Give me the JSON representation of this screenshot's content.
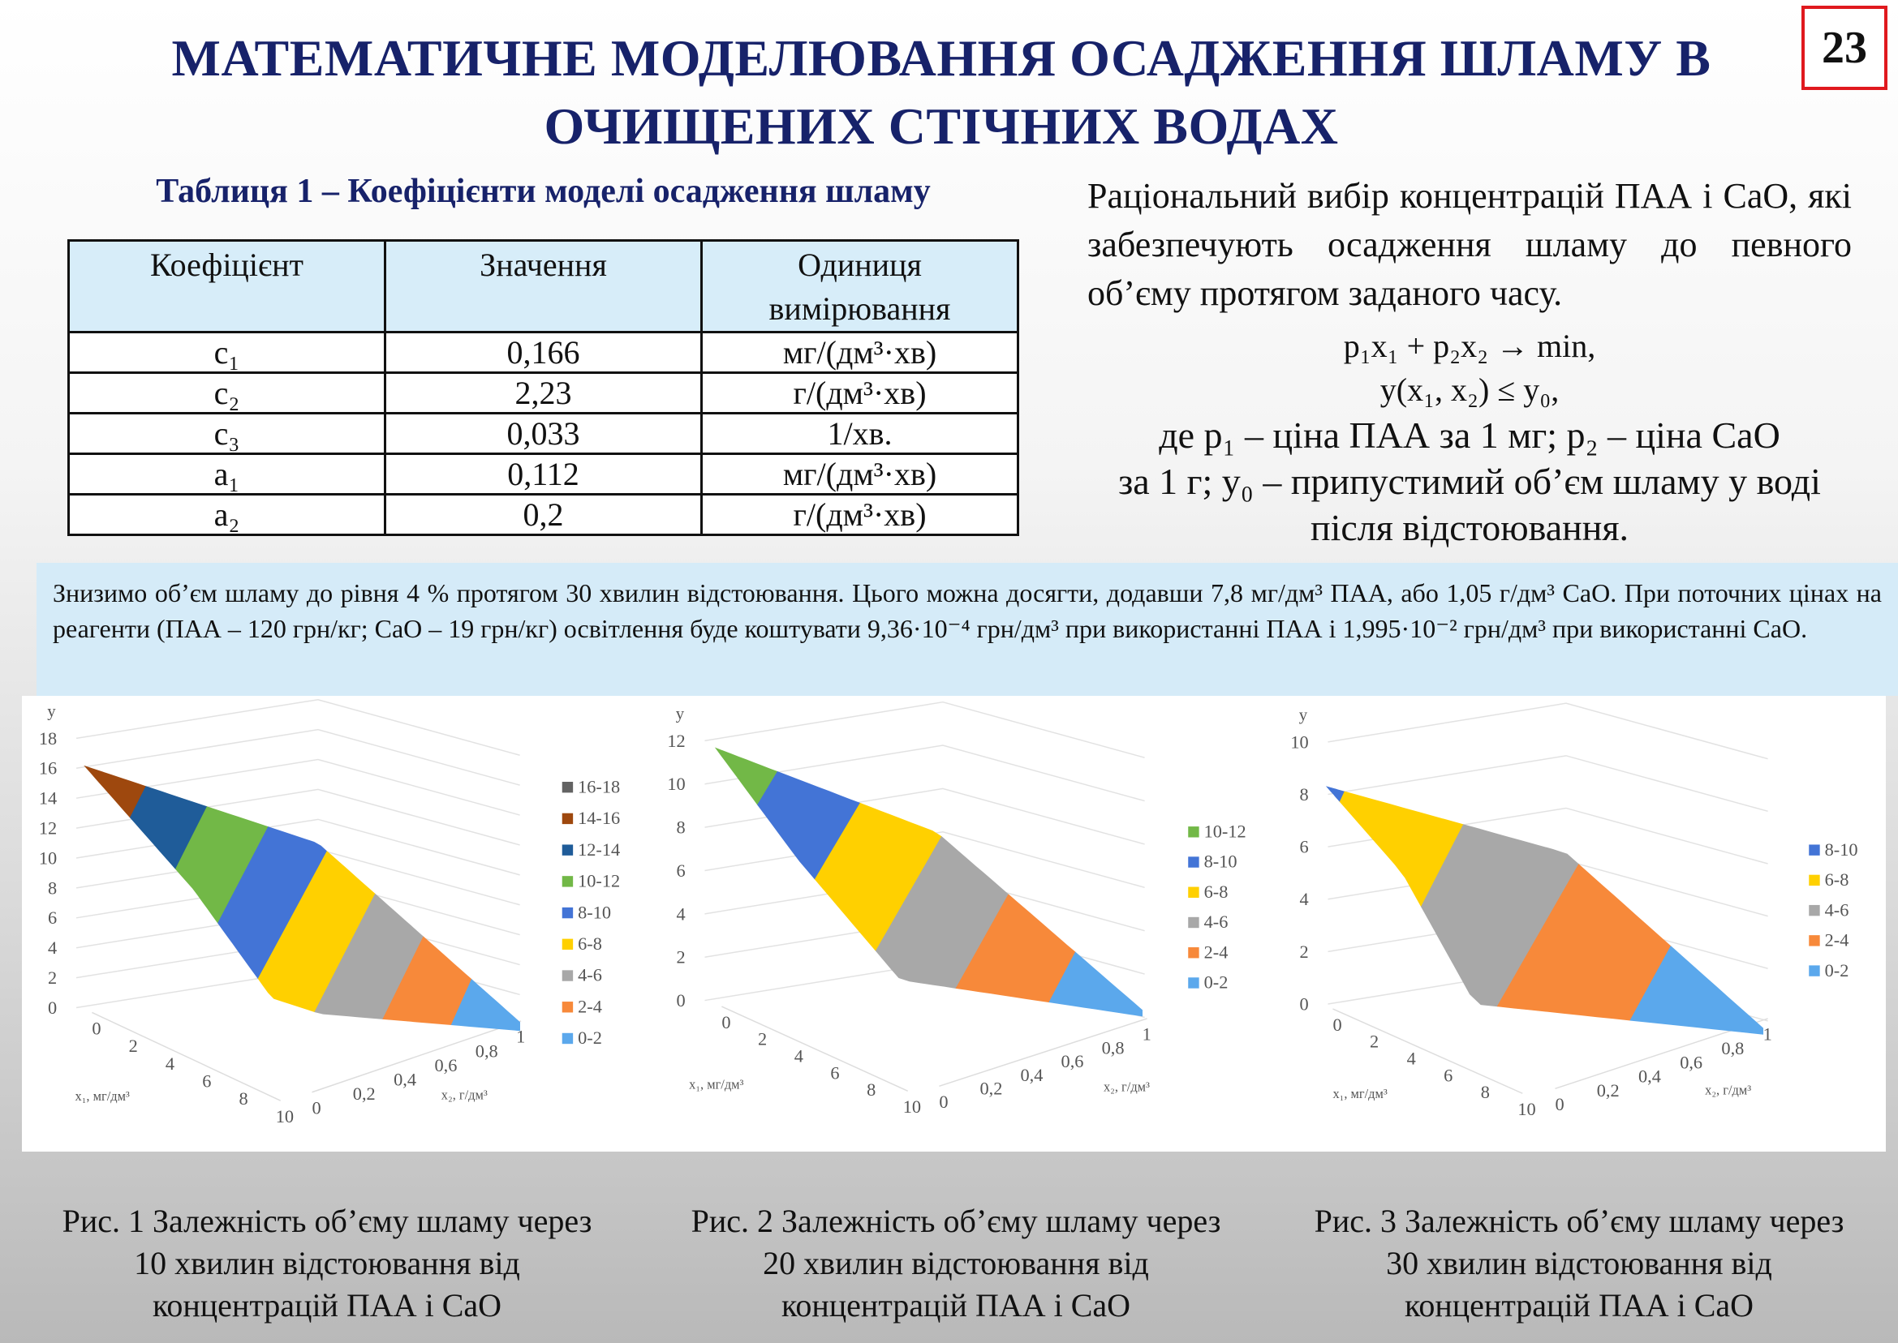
{
  "title": {
    "line1": "МАТЕМАТИЧНЕ МОДЕЛЮВАННЯ ОСАДЖЕННЯ ШЛАМУ В",
    "line2": "ОЧИЩЕНИХ СТІЧНИХ ВОДАХ"
  },
  "page_number": "23",
  "table": {
    "caption": "Таблиця 1 – Коефіцієнти моделі осадження шламу",
    "headers": [
      "Коефіцієнт",
      "Значення",
      "Одиниця вимірювання"
    ],
    "rows": [
      [
        "c₁",
        "0,166",
        "мг/(дм³·хв)"
      ],
      [
        "c₂",
        "2,23",
        "г/(дм³·хв)"
      ],
      [
        "c₃",
        "0,033",
        "1/хв."
      ],
      [
        "a₁",
        "0,112",
        "мг/(дм³·хв)"
      ],
      [
        "a₂",
        "0,2",
        "г/(дм³·хв)"
      ]
    ]
  },
  "right_text": "Раціональний вибір концентрацій ПАА і CaO, які забезпечують осадження шламу до певного об’єму протягом заданого часу.",
  "formulas": [
    "p₁x₁ + p₂x₂ → min,",
    "y(x₁, x₂) ≤ y₀,",
    "де p₁ – ціна ПАА за 1 мг; p₂ – ціна CaO",
    "за 1 г; y₀ – припустимий об’єм шламу у воді",
    "після відстоювання."
  ],
  "blue_box_text": "Знизимо об’єм шламу до рівня 4 % протягом 30 хвилин відстоювання. Цього можна досягти, додавши 7,8 мг/дм³ ПАА, або 1,05 г/дм³ CaO. При поточних цінах на реагенти (ПАА – 120 грн/кг; CaO – 19 грн/кг) освітлення буде коштувати 9,36·10⁻⁴ грн/дм³ при використанні ПАА і 1,995·10⁻² грн/дм³ при використанні CaO.",
  "captions": [
    "Рис. 1 Залежність об’єму шламу через 10 хвилин відстоювання від концентрацій ПАА і CaO",
    "Рис. 2 Залежність об’єму шламу через 20 хвилин відстоювання від концентрацій ПАА і CaO",
    "Рис. 3 Залежність об’єму шламу через 30 хвилин відстоювання від концентрацій ПАА і CaO"
  ],
  "chart_data": [
    {
      "type": "surface",
      "zlabel": "y",
      "xlabel": "x₁, мг/дм³",
      "ylabel": "x₂, г/дм³",
      "z_ticks": [
        "0",
        "2",
        "4",
        "6",
        "8",
        "10",
        "12",
        "14",
        "16",
        "18"
      ],
      "zlim": [
        0,
        18
      ],
      "x1_ticks": [
        "0",
        "2",
        "4",
        "6",
        "8",
        "10"
      ],
      "x2_ticks": [
        "0",
        "0,2",
        "0,4",
        "0,6",
        "0,8",
        "1"
      ],
      "peak": 16,
      "legend": [
        {
          "label": "16-18",
          "range": [
            16,
            18
          ],
          "color": "#636363"
        },
        {
          "label": "14-16",
          "range": [
            14,
            16
          ],
          "color": "#9e480e"
        },
        {
          "label": "12-14",
          "range": [
            12,
            14
          ],
          "color": "#1f5c99"
        },
        {
          "label": "10-12",
          "range": [
            10,
            12
          ],
          "color": "#72b847"
        },
        {
          "label": "8-10",
          "range": [
            8,
            10
          ],
          "color": "#4374d6"
        },
        {
          "label": "6-8",
          "range": [
            6,
            8
          ],
          "color": "#ffd000"
        },
        {
          "label": "4-6",
          "range": [
            4,
            6
          ],
          "color": "#a8a8a8"
        },
        {
          "label": "2-4",
          "range": [
            2,
            4
          ],
          "color": "#f7893a"
        },
        {
          "label": "0-2",
          "range": [
            0,
            2
          ],
          "color": "#5ba8ec"
        }
      ]
    },
    {
      "type": "surface",
      "zlabel": "y",
      "xlabel": "x₁, мг/дм³",
      "ylabel": "x₂, г/дм³",
      "z_ticks": [
        "0",
        "2",
        "4",
        "6",
        "8",
        "10",
        "12"
      ],
      "zlim": [
        0,
        12
      ],
      "x1_ticks": [
        "0",
        "2",
        "4",
        "6",
        "8",
        "10"
      ],
      "x2_ticks": [
        "0",
        "0,2",
        "0,4",
        "0,6",
        "0,8",
        "1"
      ],
      "peak": 11.5,
      "legend": [
        {
          "label": "10-12",
          "range": [
            10,
            12
          ],
          "color": "#72b847"
        },
        {
          "label": "8-10",
          "range": [
            8,
            10
          ],
          "color": "#4374d6"
        },
        {
          "label": "6-8",
          "range": [
            6,
            8
          ],
          "color": "#ffd000"
        },
        {
          "label": "4-6",
          "range": [
            4,
            6
          ],
          "color": "#a8a8a8"
        },
        {
          "label": "2-4",
          "range": [
            2,
            4
          ],
          "color": "#f7893a"
        },
        {
          "label": "0-2",
          "range": [
            0,
            2
          ],
          "color": "#5ba8ec"
        }
      ]
    },
    {
      "type": "surface",
      "zlabel": "y",
      "xlabel": "x₁, мг/дм³",
      "ylabel": "x₂, г/дм³",
      "z_ticks": [
        "0",
        "2",
        "4",
        "6",
        "8",
        "10"
      ],
      "zlim": [
        0,
        10
      ],
      "x1_ticks": [
        "0",
        "2",
        "4",
        "6",
        "8",
        "10"
      ],
      "x2_ticks": [
        "0",
        "0,2",
        "0,4",
        "0,6",
        "0,8",
        "1"
      ],
      "peak": 8.3,
      "legend": [
        {
          "label": "8-10",
          "range": [
            8,
            10
          ],
          "color": "#4374d6"
        },
        {
          "label": "6-8",
          "range": [
            6,
            8
          ],
          "color": "#ffd000"
        },
        {
          "label": "4-6",
          "range": [
            4,
            6
          ],
          "color": "#a8a8a8"
        },
        {
          "label": "2-4",
          "range": [
            2,
            4
          ],
          "color": "#f7893a"
        },
        {
          "label": "0-2",
          "range": [
            0,
            2
          ],
          "color": "#5ba8ec"
        }
      ]
    }
  ]
}
